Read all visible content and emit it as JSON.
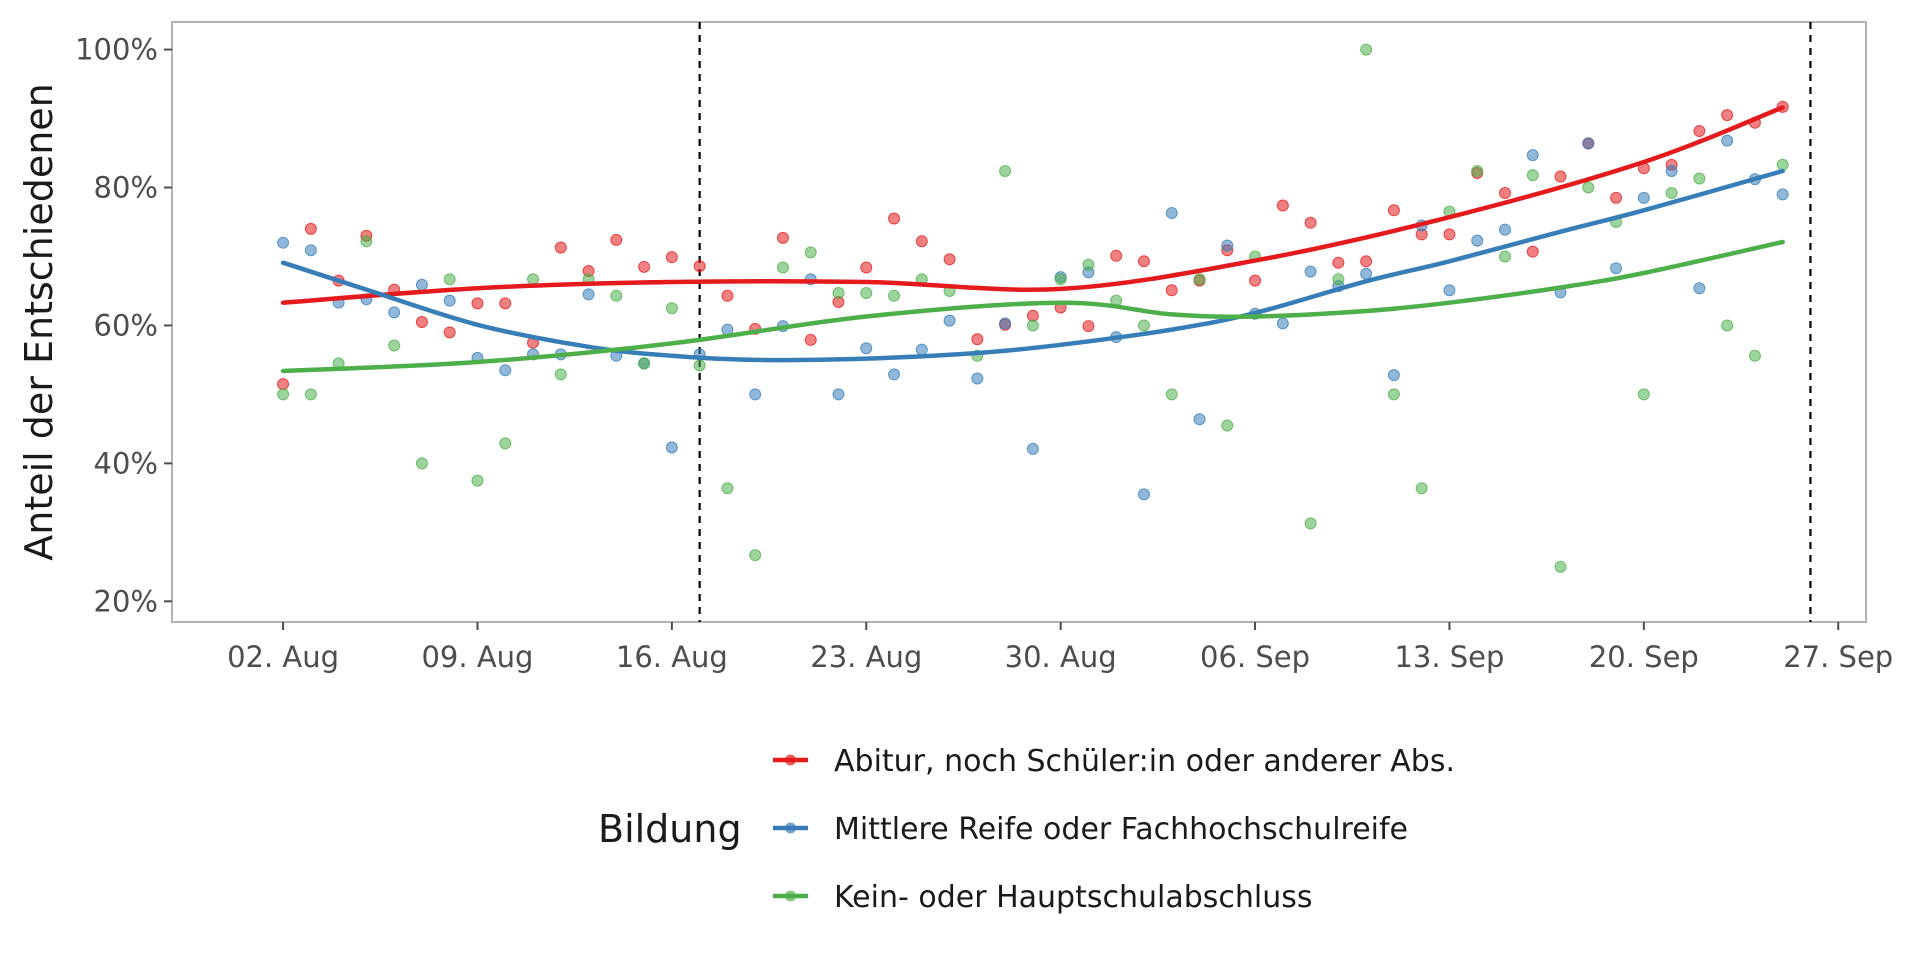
{
  "chart_data": {
    "type": "scatter",
    "title": "",
    "xlabel": "",
    "ylabel": "Anteil der Entschiedenen",
    "x_range": [
      "2021-07-29",
      "2021-09-28"
    ],
    "ylim": [
      0.17,
      1.04
    ],
    "y_ticks": [
      0.2,
      0.4,
      0.6,
      0.8,
      1.0
    ],
    "y_tick_labels": [
      "20%",
      "40%",
      "60%",
      "80%",
      "100%"
    ],
    "x_ticks": [
      "2021-08-02",
      "2021-08-09",
      "2021-08-16",
      "2021-08-23",
      "2021-08-30",
      "2021-09-06",
      "2021-09-13",
      "2021-09-20",
      "2021-09-27"
    ],
    "x_tick_labels": [
      "02. Aug",
      "09. Aug",
      "16. Aug",
      "23. Aug",
      "30. Aug",
      "06. Sep",
      "13. Sep",
      "20. Sep",
      "27. Sep"
    ],
    "vlines": [
      "2021-08-17",
      "2021-09-26"
    ],
    "grid": false,
    "legend": {
      "title": "Bildung",
      "position": "bottom"
    },
    "series": [
      {
        "name": "Abitur, noch Schüler:in oder anderer Abs.",
        "color": "#E41A1C",
        "points": [
          [
            "2021-08-02",
            0.515
          ],
          [
            "2021-08-03",
            0.74
          ],
          [
            "2021-08-04",
            0.665
          ],
          [
            "2021-08-05",
            0.73
          ],
          [
            "2021-08-06",
            0.652
          ],
          [
            "2021-08-07",
            0.605
          ],
          [
            "2021-08-08",
            0.59
          ],
          [
            "2021-08-09",
            0.632
          ],
          [
            "2021-08-10",
            0.632
          ],
          [
            "2021-08-11",
            0.575
          ],
          [
            "2021-08-12",
            0.713
          ],
          [
            "2021-08-13",
            0.679
          ],
          [
            "2021-08-14",
            0.724
          ],
          [
            "2021-08-15",
            0.685
          ],
          [
            "2021-08-16",
            0.699
          ],
          [
            "2021-08-17",
            0.686
          ],
          [
            "2021-08-18",
            0.643
          ],
          [
            "2021-08-19",
            0.595
          ],
          [
            "2021-08-20",
            0.727
          ],
          [
            "2021-08-21",
            0.579
          ],
          [
            "2021-08-22",
            0.634
          ],
          [
            "2021-08-23",
            0.684
          ],
          [
            "2021-08-24",
            0.755
          ],
          [
            "2021-08-25",
            0.722
          ],
          [
            "2021-08-26",
            0.696
          ],
          [
            "2021-08-27",
            0.58
          ],
          [
            "2021-08-28",
            0.601
          ],
          [
            "2021-08-29",
            0.614
          ],
          [
            "2021-08-30",
            0.626
          ],
          [
            "2021-08-31",
            0.599
          ],
          [
            "2021-09-01",
            0.701
          ],
          [
            "2021-09-02",
            0.693
          ],
          [
            "2021-09-03",
            0.651
          ],
          [
            "2021-09-04",
            0.665
          ],
          [
            "2021-09-05",
            0.709
          ],
          [
            "2021-09-06",
            0.665
          ],
          [
            "2021-09-07",
            0.774
          ],
          [
            "2021-09-08",
            0.749
          ],
          [
            "2021-09-09",
            0.691
          ],
          [
            "2021-09-10",
            0.693
          ],
          [
            "2021-09-11",
            0.767
          ],
          [
            "2021-09-12",
            0.732
          ],
          [
            "2021-09-13",
            0.732
          ],
          [
            "2021-09-14",
            0.821
          ],
          [
            "2021-09-15",
            0.792
          ],
          [
            "2021-09-16",
            0.707
          ],
          [
            "2021-09-17",
            0.816
          ],
          [
            "2021-09-18",
            0.864
          ],
          [
            "2021-09-19",
            0.785
          ],
          [
            "2021-09-20",
            0.828
          ],
          [
            "2021-09-21",
            0.833
          ],
          [
            "2021-09-22",
            0.882
          ],
          [
            "2021-09-23",
            0.905
          ],
          [
            "2021-09-24",
            0.894
          ],
          [
            "2021-09-25",
            0.917
          ]
        ],
        "trend": [
          [
            "2021-08-02",
            0.633
          ],
          [
            "2021-08-09",
            0.654
          ],
          [
            "2021-08-16",
            0.663
          ],
          [
            "2021-08-23",
            0.663
          ],
          [
            "2021-08-30",
            0.653
          ],
          [
            "2021-09-06",
            0.694
          ],
          [
            "2021-09-13",
            0.757
          ],
          [
            "2021-09-20",
            0.837
          ],
          [
            "2021-09-25",
            0.916
          ]
        ]
      },
      {
        "name": "Mittlere Reife oder Fachhochschulreife",
        "color": "#377EB8",
        "points": [
          [
            "2021-08-02",
            0.72
          ],
          [
            "2021-08-03",
            0.709
          ],
          [
            "2021-08-04",
            0.633
          ],
          [
            "2021-08-05",
            0.638
          ],
          [
            "2021-08-06",
            0.619
          ],
          [
            "2021-08-07",
            0.659
          ],
          [
            "2021-08-08",
            0.636
          ],
          [
            "2021-08-09",
            0.553
          ],
          [
            "2021-08-10",
            0.535
          ],
          [
            "2021-08-11",
            0.558
          ],
          [
            "2021-08-12",
            0.558
          ],
          [
            "2021-08-13",
            0.645
          ],
          [
            "2021-08-14",
            0.556
          ],
          [
            "2021-08-15",
            0.545
          ],
          [
            "2021-08-16",
            0.423
          ],
          [
            "2021-08-17",
            0.558
          ],
          [
            "2021-08-18",
            0.594
          ],
          [
            "2021-08-19",
            0.5
          ],
          [
            "2021-08-20",
            0.599
          ],
          [
            "2021-08-21",
            0.667
          ],
          [
            "2021-08-22",
            0.5
          ],
          [
            "2021-08-23",
            0.567
          ],
          [
            "2021-08-24",
            0.529
          ],
          [
            "2021-08-25",
            0.565
          ],
          [
            "2021-08-26",
            0.607
          ],
          [
            "2021-08-27",
            0.523
          ],
          [
            "2021-08-28",
            0.603
          ],
          [
            "2021-08-29",
            0.421
          ],
          [
            "2021-08-30",
            0.67
          ],
          [
            "2021-08-31",
            0.677
          ],
          [
            "2021-09-01",
            0.583
          ],
          [
            "2021-09-02",
            0.355
          ],
          [
            "2021-09-03",
            0.763
          ],
          [
            "2021-09-04",
            0.464
          ],
          [
            "2021-09-05",
            0.716
          ],
          [
            "2021-09-06",
            0.617
          ],
          [
            "2021-09-07",
            0.603
          ],
          [
            "2021-09-08",
            0.678
          ],
          [
            "2021-09-09",
            0.657
          ],
          [
            "2021-09-10",
            0.675
          ],
          [
            "2021-09-11",
            0.528
          ],
          [
            "2021-09-12",
            0.745
          ],
          [
            "2021-09-13",
            0.651
          ],
          [
            "2021-09-14",
            0.723
          ],
          [
            "2021-09-15",
            0.739
          ],
          [
            "2021-09-16",
            0.847
          ],
          [
            "2021-09-17",
            0.648
          ],
          [
            "2021-09-18",
            0.864
          ],
          [
            "2021-09-19",
            0.683
          ],
          [
            "2021-09-20",
            0.785
          ],
          [
            "2021-09-21",
            0.824
          ],
          [
            "2021-09-22",
            0.654
          ],
          [
            "2021-09-23",
            0.868
          ],
          [
            "2021-09-24",
            0.812
          ],
          [
            "2021-09-25",
            0.79
          ]
        ],
        "trend": [
          [
            "2021-08-02",
            0.691
          ],
          [
            "2021-08-05",
            0.652
          ],
          [
            "2021-08-09",
            0.601
          ],
          [
            "2021-08-13",
            0.569
          ],
          [
            "2021-08-16",
            0.556
          ],
          [
            "2021-08-19",
            0.55
          ],
          [
            "2021-08-23",
            0.552
          ],
          [
            "2021-08-27",
            0.56
          ],
          [
            "2021-08-30",
            0.572
          ],
          [
            "2021-09-03",
            0.594
          ],
          [
            "2021-09-06",
            0.618
          ],
          [
            "2021-09-10",
            0.664
          ],
          [
            "2021-09-13",
            0.693
          ],
          [
            "2021-09-17",
            0.736
          ],
          [
            "2021-09-20",
            0.767
          ],
          [
            "2021-09-25",
            0.824
          ]
        ]
      },
      {
        "name": "Kein- oder Hauptschulabschluss",
        "color": "#4DAF4A",
        "points": [
          [
            "2021-08-02",
            0.5
          ],
          [
            "2021-08-03",
            0.5
          ],
          [
            "2021-08-04",
            0.545
          ],
          [
            "2021-08-05",
            0.722
          ],
          [
            "2021-08-06",
            0.571
          ],
          [
            "2021-08-07",
            0.4
          ],
          [
            "2021-08-08",
            0.667
          ],
          [
            "2021-08-09",
            0.375
          ],
          [
            "2021-08-10",
            0.429
          ],
          [
            "2021-08-11",
            0.667
          ],
          [
            "2021-08-12",
            0.529
          ],
          [
            "2021-08-13",
            0.667
          ],
          [
            "2021-08-14",
            0.643
          ],
          [
            "2021-08-15",
            0.545
          ],
          [
            "2021-08-16",
            0.625
          ],
          [
            "2021-08-17",
            0.542
          ],
          [
            "2021-08-18",
            0.364
          ],
          [
            "2021-08-19",
            0.267
          ],
          [
            "2021-08-20",
            0.684
          ],
          [
            "2021-08-21",
            0.706
          ],
          [
            "2021-08-22",
            0.647
          ],
          [
            "2021-08-23",
            0.647
          ],
          [
            "2021-08-24",
            0.643
          ],
          [
            "2021-08-25",
            0.667
          ],
          [
            "2021-08-26",
            0.65
          ],
          [
            "2021-08-27",
            0.556
          ],
          [
            "2021-08-28",
            0.824
          ],
          [
            "2021-08-29",
            0.6
          ],
          [
            "2021-08-30",
            0.667
          ],
          [
            "2021-08-31",
            0.688
          ],
          [
            "2021-09-01",
            0.636
          ],
          [
            "2021-09-02",
            0.6
          ],
          [
            "2021-09-03",
            0.5
          ],
          [
            "2021-09-04",
            0.667
          ],
          [
            "2021-09-05",
            0.455
          ],
          [
            "2021-09-06",
            0.7
          ],
          [
            "2021-09-08",
            0.313
          ],
          [
            "2021-09-09",
            0.667
          ],
          [
            "2021-09-10",
            1.0
          ],
          [
            "2021-09-11",
            0.5
          ],
          [
            "2021-09-12",
            0.364
          ],
          [
            "2021-09-13",
            0.765
          ],
          [
            "2021-09-14",
            0.824
          ],
          [
            "2021-09-15",
            0.7
          ],
          [
            "2021-09-16",
            0.818
          ],
          [
            "2021-09-17",
            0.25
          ],
          [
            "2021-09-18",
            0.8
          ],
          [
            "2021-09-19",
            0.75
          ],
          [
            "2021-09-20",
            0.5
          ],
          [
            "2021-09-21",
            0.792
          ],
          [
            "2021-09-22",
            0.813
          ],
          [
            "2021-09-23",
            0.6
          ],
          [
            "2021-09-24",
            0.556
          ],
          [
            "2021-09-25",
            0.833
          ]
        ],
        "trend": [
          [
            "2021-08-02",
            0.534
          ],
          [
            "2021-08-09",
            0.547
          ],
          [
            "2021-08-16",
            0.574
          ],
          [
            "2021-08-23",
            0.613
          ],
          [
            "2021-08-30",
            0.633
          ],
          [
            "2021-09-03",
            0.616
          ],
          [
            "2021-09-06",
            0.613
          ],
          [
            "2021-09-10",
            0.621
          ],
          [
            "2021-09-13",
            0.633
          ],
          [
            "2021-09-17",
            0.655
          ],
          [
            "2021-09-20",
            0.676
          ],
          [
            "2021-09-25",
            0.721
          ]
        ]
      }
    ]
  }
}
